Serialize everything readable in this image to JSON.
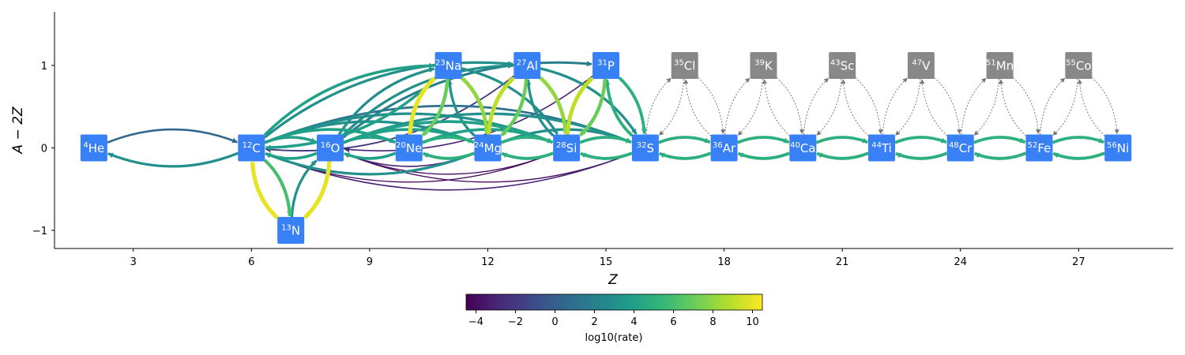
{
  "chart_data": {
    "type": "network",
    "xlabel": "Z",
    "ylabel": "A − 2Z",
    "xlim": [
      1.0,
      29.4
    ],
    "ylim": [
      -1.22,
      1.65
    ],
    "xticks": [
      3,
      6,
      9,
      12,
      15,
      18,
      21,
      24,
      27
    ],
    "yticks": [
      1,
      0,
      -1
    ],
    "colorbar": {
      "label": "log10(rate)",
      "min": -4.5,
      "max": 10.5,
      "ticks": [
        -4,
        -2,
        0,
        2,
        4,
        6,
        8,
        10
      ]
    },
    "nodes": [
      {
        "mass": "4",
        "symbol": "He",
        "Z": 2,
        "n": 0,
        "active": true
      },
      {
        "mass": "12",
        "symbol": "C",
        "Z": 6,
        "n": 0,
        "active": true
      },
      {
        "mass": "13",
        "symbol": "N",
        "Z": 7,
        "n": -1,
        "active": true
      },
      {
        "mass": "16",
        "symbol": "O",
        "Z": 8,
        "n": 0,
        "active": true
      },
      {
        "mass": "20",
        "symbol": "Ne",
        "Z": 10,
        "n": 0,
        "active": true
      },
      {
        "mass": "23",
        "symbol": "Na",
        "Z": 11,
        "n": 1,
        "active": true
      },
      {
        "mass": "24",
        "symbol": "Mg",
        "Z": 12,
        "n": 0,
        "active": true
      },
      {
        "mass": "27",
        "symbol": "Al",
        "Z": 13,
        "n": 1,
        "active": true
      },
      {
        "mass": "28",
        "symbol": "Si",
        "Z": 14,
        "n": 0,
        "active": true
      },
      {
        "mass": "31",
        "symbol": "P",
        "Z": 15,
        "n": 1,
        "active": true
      },
      {
        "mass": "32",
        "symbol": "S",
        "Z": 16,
        "n": 0,
        "active": true
      },
      {
        "mass": "35",
        "symbol": "Cl",
        "Z": 17,
        "n": 1,
        "active": false
      },
      {
        "mass": "36",
        "symbol": "Ar",
        "Z": 18,
        "n": 0,
        "active": true
      },
      {
        "mass": "39",
        "symbol": "K",
        "Z": 19,
        "n": 1,
        "active": false
      },
      {
        "mass": "40",
        "symbol": "Ca",
        "Z": 20,
        "n": 0,
        "active": true
      },
      {
        "mass": "43",
        "symbol": "Sc",
        "Z": 21,
        "n": 1,
        "active": false
      },
      {
        "mass": "44",
        "symbol": "Ti",
        "Z": 22,
        "n": 0,
        "active": true
      },
      {
        "mass": "47",
        "symbol": "V",
        "Z": 23,
        "n": 1,
        "active": false
      },
      {
        "mass": "48",
        "symbol": "Cr",
        "Z": 24,
        "n": 0,
        "active": true
      },
      {
        "mass": "51",
        "symbol": "Mn",
        "Z": 25,
        "n": 1,
        "active": false
      },
      {
        "mass": "52",
        "symbol": "Fe",
        "Z": 26,
        "n": 0,
        "active": true
      },
      {
        "mass": "55",
        "symbol": "Co",
        "Z": 27,
        "n": 1,
        "active": false
      },
      {
        "mass": "56",
        "symbol": "Ni",
        "Z": 28,
        "n": 0,
        "active": true
      }
    ],
    "links": [
      {
        "from": "He",
        "to": "C",
        "log10_rate": 0.5,
        "dashed": false
      },
      {
        "from": "C",
        "to": "He",
        "log10_rate": 3.0,
        "dashed": false
      },
      {
        "from": "C",
        "to": "N",
        "log10_rate": 6.0,
        "dashed": false
      },
      {
        "from": "N",
        "to": "C",
        "log10_rate": 10.0,
        "dashed": false
      },
      {
        "from": "N",
        "to": "O",
        "log10_rate": 3.0,
        "dashed": false
      },
      {
        "from": "O",
        "to": "N",
        "log10_rate": 10.0,
        "dashed": false
      },
      {
        "from": "C",
        "to": "O",
        "log10_rate": 4.0,
        "dashed": false
      },
      {
        "from": "O",
        "to": "C",
        "log10_rate": 4.0,
        "dashed": false
      },
      {
        "from": "C",
        "to": "Ne",
        "log10_rate": 4.0,
        "dashed": false
      },
      {
        "from": "C",
        "to": "Na",
        "log10_rate": 4.0,
        "dashed": false
      },
      {
        "from": "Na",
        "to": "C",
        "log10_rate": 4.0,
        "dashed": false
      },
      {
        "from": "C",
        "to": "Mg",
        "log10_rate": 3.0,
        "dashed": false
      },
      {
        "from": "Mg",
        "to": "C",
        "log10_rate": 3.0,
        "dashed": false
      },
      {
        "from": "C",
        "to": "Al",
        "log10_rate": 3.0,
        "dashed": false
      },
      {
        "from": "Al",
        "to": "C",
        "log10_rate": -2.0,
        "dashed": false
      },
      {
        "from": "C",
        "to": "Si",
        "log10_rate": 3.0,
        "dashed": false
      },
      {
        "from": "Si",
        "to": "C",
        "log10_rate": -4.0,
        "dashed": false
      },
      {
        "from": "C",
        "to": "S",
        "log10_rate": 1.0,
        "dashed": false
      },
      {
        "from": "S",
        "to": "C",
        "log10_rate": -3.0,
        "dashed": false
      },
      {
        "from": "O",
        "to": "Ne",
        "log10_rate": 4.0,
        "dashed": false
      },
      {
        "from": "Ne",
        "to": "O",
        "log10_rate": 4.0,
        "dashed": false
      },
      {
        "from": "O",
        "to": "Mg",
        "log10_rate": 4.0,
        "dashed": false
      },
      {
        "from": "Mg",
        "to": "O",
        "log10_rate": -3.0,
        "dashed": false
      },
      {
        "from": "O",
        "to": "Na",
        "log10_rate": 3.0,
        "dashed": false
      },
      {
        "from": "O",
        "to": "Al",
        "log10_rate": 3.0,
        "dashed": false
      },
      {
        "from": "O",
        "to": "Si",
        "log10_rate": 4.0,
        "dashed": false
      },
      {
        "from": "Si",
        "to": "O",
        "log10_rate": -4.0,
        "dashed": false
      },
      {
        "from": "O",
        "to": "P",
        "log10_rate": 2.0,
        "dashed": false
      },
      {
        "from": "P",
        "to": "O",
        "log10_rate": -3.0,
        "dashed": false
      },
      {
        "from": "O",
        "to": "S",
        "log10_rate": 3.0,
        "dashed": false
      },
      {
        "from": "S",
        "to": "O",
        "log10_rate": -4.0,
        "dashed": false
      },
      {
        "from": "Ne",
        "to": "Mg",
        "log10_rate": 5.0,
        "dashed": false
      },
      {
        "from": "Mg",
        "to": "Ne",
        "log10_rate": 5.0,
        "dashed": false
      },
      {
        "from": "Ne",
        "to": "Na",
        "log10_rate": 10.0,
        "dashed": false
      },
      {
        "from": "Na",
        "to": "Ne",
        "log10_rate": 7.0,
        "dashed": false
      },
      {
        "from": "Ne",
        "to": "Si",
        "log10_rate": 4.0,
        "dashed": false
      },
      {
        "from": "Na",
        "to": "Mg",
        "log10_rate": 8.0,
        "dashed": false
      },
      {
        "from": "Mg",
        "to": "Na",
        "log10_rate": 3.0,
        "dashed": false
      },
      {
        "from": "Na",
        "to": "Si",
        "log10_rate": 3.0,
        "dashed": false
      },
      {
        "from": "Mg",
        "to": "Si",
        "log10_rate": 5.0,
        "dashed": false
      },
      {
        "from": "Si",
        "to": "Mg",
        "log10_rate": 5.0,
        "dashed": false
      },
      {
        "from": "Mg",
        "to": "Al",
        "log10_rate": 9.0,
        "dashed": false
      },
      {
        "from": "Al",
        "to": "Mg",
        "log10_rate": 7.0,
        "dashed": false
      },
      {
        "from": "Mg",
        "to": "S",
        "log10_rate": 3.0,
        "dashed": false
      },
      {
        "from": "Al",
        "to": "Si",
        "log10_rate": 8.0,
        "dashed": false
      },
      {
        "from": "Si",
        "to": "Al",
        "log10_rate": 3.0,
        "dashed": false
      },
      {
        "from": "Al",
        "to": "S",
        "log10_rate": 3.0,
        "dashed": false
      },
      {
        "from": "Si",
        "to": "S",
        "log10_rate": 5.0,
        "dashed": false
      },
      {
        "from": "S",
        "to": "Si",
        "log10_rate": 5.0,
        "dashed": false
      },
      {
        "from": "Si",
        "to": "P",
        "log10_rate": 9.0,
        "dashed": false
      },
      {
        "from": "P",
        "to": "Si",
        "log10_rate": 7.0,
        "dashed": false
      },
      {
        "from": "P",
        "to": "S",
        "log10_rate": 5.0,
        "dashed": false
      },
      {
        "from": "S",
        "to": "P",
        "log10_rate": 5.0,
        "dashed": false
      },
      {
        "from": "S",
        "to": "Ar",
        "log10_rate": 5.0,
        "dashed": false
      },
      {
        "from": "Ar",
        "to": "S",
        "log10_rate": 5.0,
        "dashed": false
      },
      {
        "from": "Ar",
        "to": "Ca",
        "log10_rate": 5.0,
        "dashed": false
      },
      {
        "from": "Ca",
        "to": "Ar",
        "log10_rate": 5.0,
        "dashed": false
      },
      {
        "from": "Ca",
        "to": "Ti",
        "log10_rate": 5.0,
        "dashed": false
      },
      {
        "from": "Ti",
        "to": "Ca",
        "log10_rate": 5.0,
        "dashed": false
      },
      {
        "from": "Ti",
        "to": "Cr",
        "log10_rate": 5.0,
        "dashed": false
      },
      {
        "from": "Cr",
        "to": "Ti",
        "log10_rate": 5.0,
        "dashed": false
      },
      {
        "from": "Cr",
        "to": "Fe",
        "log10_rate": 5.0,
        "dashed": false
      },
      {
        "from": "Fe",
        "to": "Cr",
        "log10_rate": 5.0,
        "dashed": false
      },
      {
        "from": "Fe",
        "to": "Ni",
        "log10_rate": 5.0,
        "dashed": false
      },
      {
        "from": "Ni",
        "to": "Fe",
        "log10_rate": 5.0,
        "dashed": false
      },
      {
        "from": "S",
        "to": "Cl",
        "dashed": true
      },
      {
        "from": "Cl",
        "to": "S",
        "dashed": true
      },
      {
        "from": "Cl",
        "to": "Ar",
        "dashed": true
      },
      {
        "from": "Ar",
        "to": "Cl",
        "dashed": true
      },
      {
        "from": "Ar",
        "to": "K",
        "dashed": true
      },
      {
        "from": "K",
        "to": "Ar",
        "dashed": true
      },
      {
        "from": "K",
        "to": "Ca",
        "dashed": true
      },
      {
        "from": "Ca",
        "to": "K",
        "dashed": true
      },
      {
        "from": "Ca",
        "to": "Sc",
        "dashed": true
      },
      {
        "from": "Sc",
        "to": "Ca",
        "dashed": true
      },
      {
        "from": "Sc",
        "to": "Ti",
        "dashed": true
      },
      {
        "from": "Ti",
        "to": "Sc",
        "dashed": true
      },
      {
        "from": "Ti",
        "to": "V",
        "dashed": true
      },
      {
        "from": "V",
        "to": "Ti",
        "dashed": true
      },
      {
        "from": "V",
        "to": "Cr",
        "dashed": true
      },
      {
        "from": "Cr",
        "to": "V",
        "dashed": true
      },
      {
        "from": "Cr",
        "to": "Mn",
        "dashed": true
      },
      {
        "from": "Mn",
        "to": "Cr",
        "dashed": true
      },
      {
        "from": "Mn",
        "to": "Fe",
        "dashed": true
      },
      {
        "from": "Fe",
        "to": "Mn",
        "dashed": true
      },
      {
        "from": "Fe",
        "to": "Co",
        "dashed": true
      },
      {
        "from": "Co",
        "to": "Fe",
        "dashed": true
      },
      {
        "from": "Co",
        "to": "Ni",
        "dashed": true
      },
      {
        "from": "Ni",
        "to": "Co",
        "dashed": true
      }
    ]
  },
  "colors": {
    "active_node": "#3880f5",
    "inactive_node": "#888888",
    "dashed_link": "#777777",
    "axis": "#000000",
    "viridis": [
      "#440154",
      "#482878",
      "#3e4989",
      "#31688e",
      "#26828e",
      "#1f9e89",
      "#35b779",
      "#6ece58",
      "#b5de2b",
      "#fde725"
    ]
  }
}
